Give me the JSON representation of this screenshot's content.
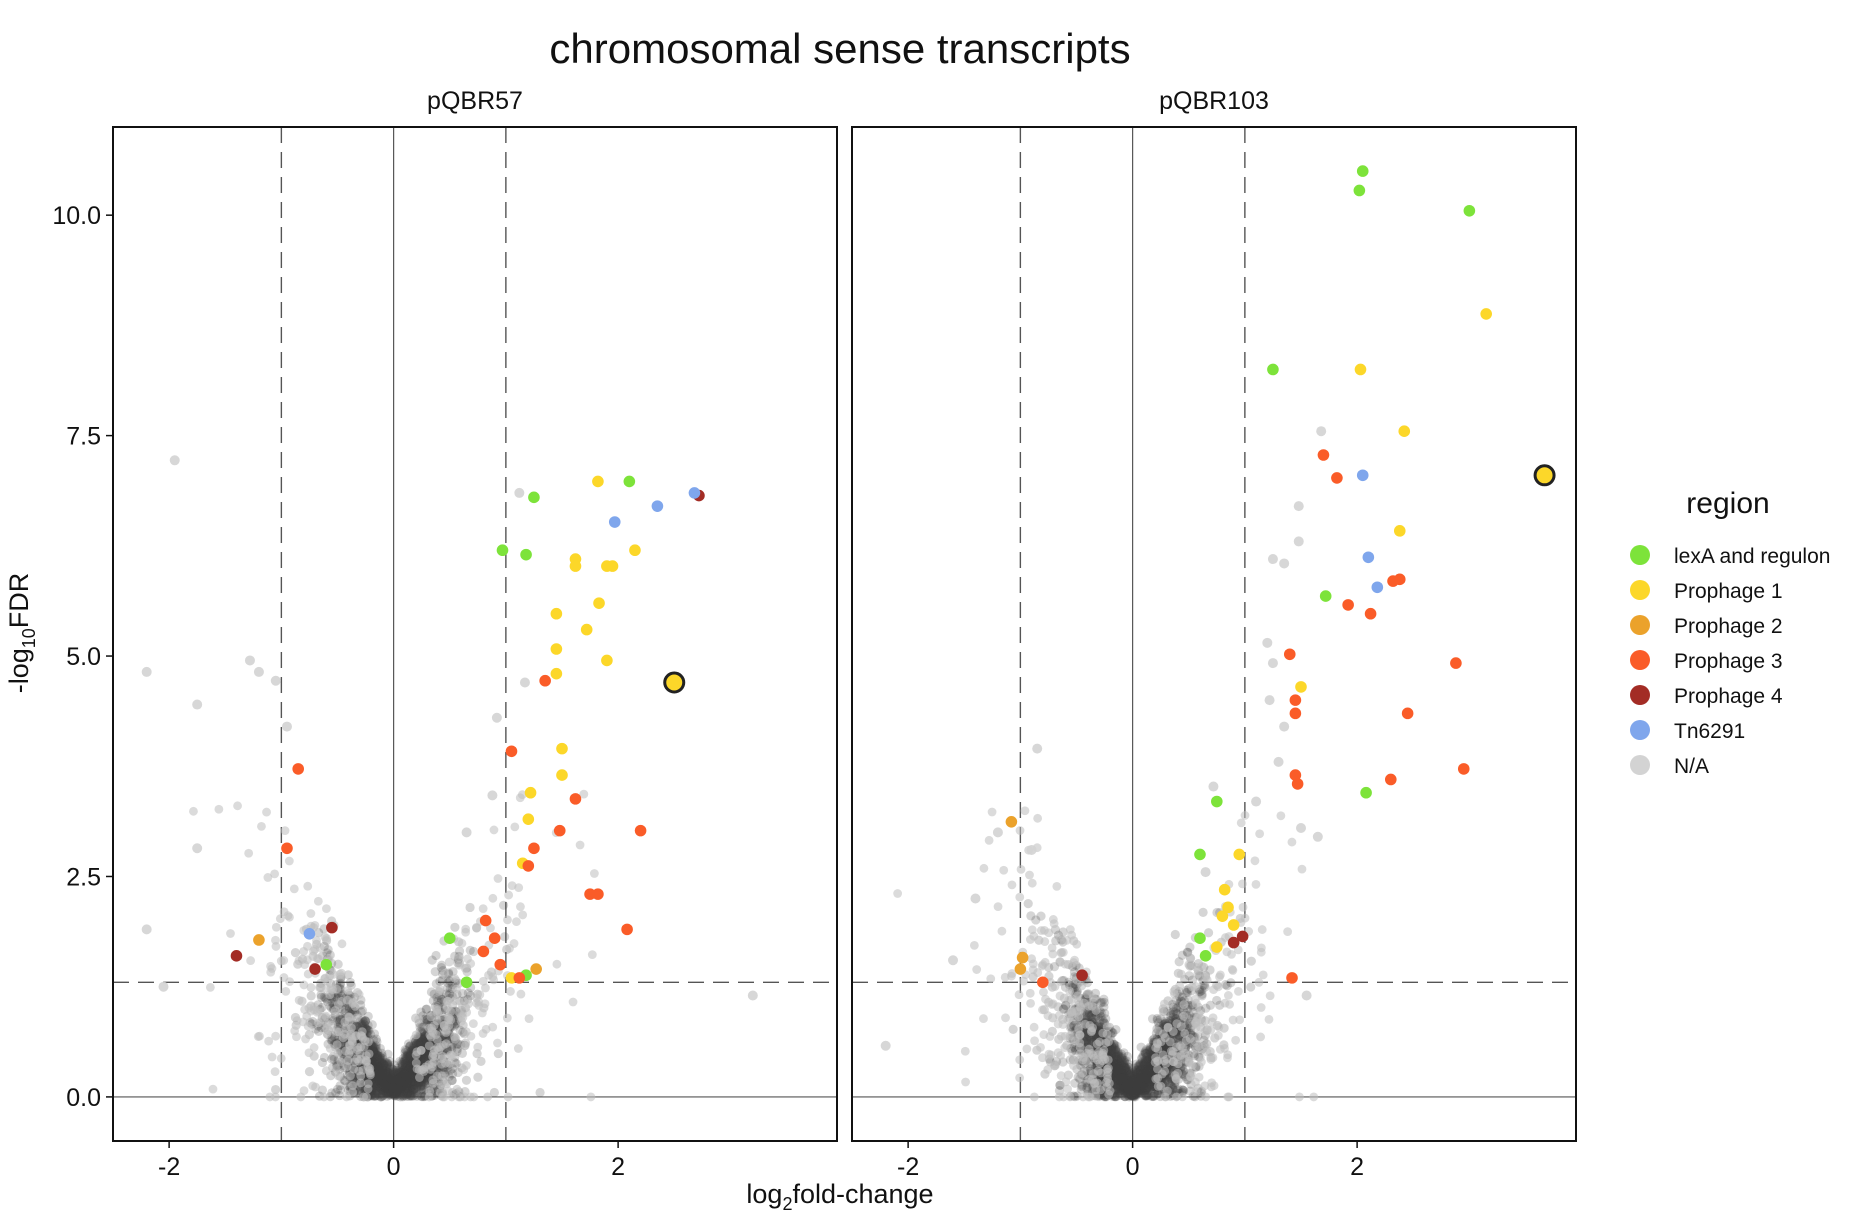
{
  "title": "chromosomal sense transcripts",
  "xlabel": {
    "prefix": "log",
    "sub": "2",
    "suffix": "fold-change"
  },
  "ylabel": {
    "prefix": "-log",
    "sub": "10",
    "suffix": "FDR"
  },
  "legend": {
    "title": "region",
    "position": "right",
    "items": [
      {
        "label": "lexA and regulon",
        "color": "#7de33a"
      },
      {
        "label": "Prophage 1",
        "color": "#fcd729"
      },
      {
        "label": "Prophage 2",
        "color": "#eba22b"
      },
      {
        "label": "Prophage 3",
        "color": "#fa5c28"
      },
      {
        "label": "Prophage 4",
        "color": "#a32c25"
      },
      {
        "label": "Tn6291",
        "color": "#7fa6ec"
      },
      {
        "label": "N/A",
        "color": "#d3d3d3"
      }
    ]
  },
  "background_color": "#3f3f3f",
  "chart_data": [
    {
      "type": "scatter",
      "panel": "pQBR57",
      "xlim": [
        -2.5,
        3.95
      ],
      "ylim": [
        -0.5,
        11.0
      ],
      "x_ticks": [
        -2,
        0,
        2
      ],
      "x_tick_labels": [
        "-2",
        "0",
        "2"
      ],
      "y_ticks": [
        0,
        2.5,
        5,
        7.5,
        10
      ],
      "y_tick_labels": [
        "0.0",
        "2.5",
        "5.0",
        "7.5",
        "10.0"
      ],
      "threshold_lines": {
        "x": [
          -1,
          1
        ],
        "y": 1.3
      },
      "zero_lines": {
        "x": 0,
        "y": 0
      },
      "highlighted": {
        "x": 2.5,
        "y": 4.7,
        "region": "Prophage 1"
      },
      "background_points": "dense cloud of several thousand non-significant transcripts forming a V shape around (0, 0)",
      "points": [
        {
          "x": 1.25,
          "y": 6.8,
          "region": "lexA and regulon"
        },
        {
          "x": 0.97,
          "y": 6.2,
          "region": "lexA and regulon"
        },
        {
          "x": 1.18,
          "y": 6.15,
          "region": "lexA and regulon"
        },
        {
          "x": 2.1,
          "y": 6.98,
          "region": "lexA and regulon"
        },
        {
          "x": 0.5,
          "y": 1.8,
          "region": "lexA and regulon"
        },
        {
          "x": 0.65,
          "y": 1.3,
          "region": "lexA and regulon"
        },
        {
          "x": 1.18,
          "y": 1.38,
          "region": "lexA and regulon"
        },
        {
          "x": -0.6,
          "y": 1.5,
          "region": "lexA and regulon"
        },
        {
          "x": 1.82,
          "y": 6.98,
          "region": "Prophage 1"
        },
        {
          "x": 1.62,
          "y": 6.1,
          "region": "Prophage 1"
        },
        {
          "x": 1.62,
          "y": 6.02,
          "region": "Prophage 1"
        },
        {
          "x": 1.9,
          "y": 6.02,
          "region": "Prophage 1"
        },
        {
          "x": 1.95,
          "y": 6.02,
          "region": "Prophage 1"
        },
        {
          "x": 2.15,
          "y": 6.2,
          "region": "Prophage 1"
        },
        {
          "x": 1.45,
          "y": 5.48,
          "region": "Prophage 1"
        },
        {
          "x": 1.83,
          "y": 5.6,
          "region": "Prophage 1"
        },
        {
          "x": 1.72,
          "y": 5.3,
          "region": "Prophage 1"
        },
        {
          "x": 1.45,
          "y": 5.08,
          "region": "Prophage 1"
        },
        {
          "x": 1.45,
          "y": 4.8,
          "region": "Prophage 1"
        },
        {
          "x": 1.9,
          "y": 4.95,
          "region": "Prophage 1"
        },
        {
          "x": 1.5,
          "y": 3.95,
          "region": "Prophage 1"
        },
        {
          "x": 1.5,
          "y": 3.65,
          "region": "Prophage 1"
        },
        {
          "x": 1.22,
          "y": 3.45,
          "region": "Prophage 1"
        },
        {
          "x": 1.2,
          "y": 3.15,
          "region": "Prophage 1"
        },
        {
          "x": 1.15,
          "y": 2.65,
          "region": "Prophage 1"
        },
        {
          "x": 1.05,
          "y": 1.35,
          "region": "Prophage 1"
        },
        {
          "x": 1.27,
          "y": 1.45,
          "region": "Prophage 2"
        },
        {
          "x": -1.2,
          "y": 1.78,
          "region": "Prophage 2"
        },
        {
          "x": 1.35,
          "y": 4.72,
          "region": "Prophage 3"
        },
        {
          "x": 1.05,
          "y": 3.92,
          "region": "Prophage 3"
        },
        {
          "x": 1.62,
          "y": 3.38,
          "region": "Prophage 3"
        },
        {
          "x": 1.48,
          "y": 3.02,
          "region": "Prophage 3"
        },
        {
          "x": 2.2,
          "y": 3.02,
          "region": "Prophage 3"
        },
        {
          "x": 1.25,
          "y": 2.82,
          "region": "Prophage 3"
        },
        {
          "x": 1.2,
          "y": 2.62,
          "region": "Prophage 3"
        },
        {
          "x": 1.75,
          "y": 2.3,
          "region": "Prophage 3"
        },
        {
          "x": 1.82,
          "y": 2.3,
          "region": "Prophage 3"
        },
        {
          "x": 2.08,
          "y": 1.9,
          "region": "Prophage 3"
        },
        {
          "x": 0.82,
          "y": 2.0,
          "region": "Prophage 3"
        },
        {
          "x": 0.9,
          "y": 1.8,
          "region": "Prophage 3"
        },
        {
          "x": 0.8,
          "y": 1.65,
          "region": "Prophage 3"
        },
        {
          "x": 0.95,
          "y": 1.5,
          "region": "Prophage 3"
        },
        {
          "x": 1.12,
          "y": 1.35,
          "region": "Prophage 3"
        },
        {
          "x": -0.85,
          "y": 3.72,
          "region": "Prophage 3"
        },
        {
          "x": -0.95,
          "y": 2.82,
          "region": "Prophage 3"
        },
        {
          "x": 2.72,
          "y": 6.82,
          "region": "Prophage 4"
        },
        {
          "x": -1.4,
          "y": 1.6,
          "region": "Prophage 4"
        },
        {
          "x": -0.55,
          "y": 1.92,
          "region": "Prophage 4"
        },
        {
          "x": -0.7,
          "y": 1.45,
          "region": "Prophage 4"
        },
        {
          "x": 2.68,
          "y": 6.85,
          "region": "Tn6291"
        },
        {
          "x": 2.35,
          "y": 6.7,
          "region": "Tn6291"
        },
        {
          "x": 1.97,
          "y": 6.52,
          "region": "Tn6291"
        },
        {
          "x": -0.75,
          "y": 1.85,
          "region": "Tn6291"
        },
        {
          "x": -1.95,
          "y": 7.22,
          "region": "N/A"
        },
        {
          "x": -2.2,
          "y": 4.82,
          "region": "N/A"
        },
        {
          "x": -1.75,
          "y": 4.45,
          "region": "N/A"
        },
        {
          "x": -1.28,
          "y": 4.95,
          "region": "N/A"
        },
        {
          "x": -1.2,
          "y": 4.82,
          "region": "N/A"
        },
        {
          "x": -1.05,
          "y": 4.72,
          "region": "N/A"
        },
        {
          "x": -0.95,
          "y": 4.2,
          "region": "N/A"
        },
        {
          "x": 1.12,
          "y": 6.85,
          "region": "N/A"
        },
        {
          "x": 1.17,
          "y": 4.7,
          "region": "N/A"
        },
        {
          "x": 0.92,
          "y": 4.3,
          "region": "N/A"
        },
        {
          "x": 0.65,
          "y": 3.0,
          "region": "N/A"
        },
        {
          "x": 0.88,
          "y": 3.42,
          "region": "N/A"
        },
        {
          "x": -2.05,
          "y": 1.25,
          "region": "N/A"
        },
        {
          "x": -2.2,
          "y": 1.9,
          "region": "N/A"
        },
        {
          "x": 3.2,
          "y": 1.15,
          "region": "N/A"
        },
        {
          "x": -1.75,
          "y": 2.82,
          "region": "N/A"
        }
      ]
    },
    {
      "type": "scatter",
      "panel": "pQBR103",
      "xlim": [
        -2.5,
        3.95
      ],
      "ylim": [
        -0.5,
        11.0
      ],
      "x_ticks": [
        -2,
        0,
        2
      ],
      "x_tick_labels": [
        "-2",
        "0",
        "2"
      ],
      "threshold_lines": {
        "x": [
          -1,
          1
        ],
        "y": 1.3
      },
      "zero_lines": {
        "x": 0,
        "y": 0
      },
      "highlighted": {
        "x": 3.67,
        "y": 7.05,
        "region": "Prophage 1"
      },
      "background_points": "dense cloud of several thousand non-significant transcripts forming a V shape around (0, 0)",
      "points": [
        {
          "x": 2.05,
          "y": 10.5,
          "region": "lexA and regulon"
        },
        {
          "x": 2.02,
          "y": 10.28,
          "region": "lexA and regulon"
        },
        {
          "x": 3.0,
          "y": 10.05,
          "region": "lexA and regulon"
        },
        {
          "x": 1.25,
          "y": 8.25,
          "region": "lexA and regulon"
        },
        {
          "x": 1.72,
          "y": 5.68,
          "region": "lexA and regulon"
        },
        {
          "x": 2.08,
          "y": 3.45,
          "region": "lexA and regulon"
        },
        {
          "x": 0.75,
          "y": 3.35,
          "region": "lexA and regulon"
        },
        {
          "x": 0.6,
          "y": 2.75,
          "region": "lexA and regulon"
        },
        {
          "x": 0.65,
          "y": 1.6,
          "region": "lexA and regulon"
        },
        {
          "x": 0.6,
          "y": 1.8,
          "region": "lexA and regulon"
        },
        {
          "x": 2.03,
          "y": 8.25,
          "region": "Prophage 1"
        },
        {
          "x": 3.15,
          "y": 8.88,
          "region": "Prophage 1"
        },
        {
          "x": 2.42,
          "y": 7.55,
          "region": "Prophage 1"
        },
        {
          "x": 2.38,
          "y": 6.42,
          "region": "Prophage 1"
        },
        {
          "x": 1.5,
          "y": 4.65,
          "region": "Prophage 1"
        },
        {
          "x": 0.95,
          "y": 2.75,
          "region": "Prophage 1"
        },
        {
          "x": 0.82,
          "y": 2.35,
          "region": "Prophage 1"
        },
        {
          "x": 0.85,
          "y": 2.15,
          "region": "Prophage 1"
        },
        {
          "x": 0.8,
          "y": 2.05,
          "region": "Prophage 1"
        },
        {
          "x": 0.9,
          "y": 1.95,
          "region": "Prophage 1"
        },
        {
          "x": 0.75,
          "y": 1.7,
          "region": "Prophage 1"
        },
        {
          "x": -1.08,
          "y": 3.12,
          "region": "Prophage 2"
        },
        {
          "x": -0.98,
          "y": 1.58,
          "region": "Prophage 2"
        },
        {
          "x": -1.0,
          "y": 1.45,
          "region": "Prophage 2"
        },
        {
          "x": 1.7,
          "y": 7.28,
          "region": "Prophage 3"
        },
        {
          "x": 1.82,
          "y": 7.02,
          "region": "Prophage 3"
        },
        {
          "x": 1.92,
          "y": 5.58,
          "region": "Prophage 3"
        },
        {
          "x": 2.12,
          "y": 5.48,
          "region": "Prophage 3"
        },
        {
          "x": 2.32,
          "y": 5.85,
          "region": "Prophage 3"
        },
        {
          "x": 2.38,
          "y": 5.87,
          "region": "Prophage 3"
        },
        {
          "x": 1.4,
          "y": 5.02,
          "region": "Prophage 3"
        },
        {
          "x": 2.88,
          "y": 4.92,
          "region": "Prophage 3"
        },
        {
          "x": 1.45,
          "y": 4.5,
          "region": "Prophage 3"
        },
        {
          "x": 1.45,
          "y": 4.35,
          "region": "Prophage 3"
        },
        {
          "x": 2.45,
          "y": 4.35,
          "region": "Prophage 3"
        },
        {
          "x": 1.45,
          "y": 3.65,
          "region": "Prophage 3"
        },
        {
          "x": 1.47,
          "y": 3.55,
          "region": "Prophage 3"
        },
        {
          "x": 2.3,
          "y": 3.6,
          "region": "Prophage 3"
        },
        {
          "x": 2.95,
          "y": 3.72,
          "region": "Prophage 3"
        },
        {
          "x": 1.42,
          "y": 1.35,
          "region": "Prophage 3"
        },
        {
          "x": -0.8,
          "y": 1.3,
          "region": "Prophage 3"
        },
        {
          "x": 0.98,
          "y": 1.82,
          "region": "Prophage 4"
        },
        {
          "x": -0.45,
          "y": 1.38,
          "region": "Prophage 4"
        },
        {
          "x": 0.9,
          "y": 1.75,
          "region": "Prophage 4"
        },
        {
          "x": 2.05,
          "y": 7.05,
          "region": "Tn6291"
        },
        {
          "x": 2.1,
          "y": 6.12,
          "region": "Tn6291"
        },
        {
          "x": 2.18,
          "y": 5.78,
          "region": "Tn6291"
        },
        {
          "x": 1.68,
          "y": 7.55,
          "region": "N/A"
        },
        {
          "x": 1.48,
          "y": 6.7,
          "region": "N/A"
        },
        {
          "x": 1.48,
          "y": 6.3,
          "region": "N/A"
        },
        {
          "x": 1.25,
          "y": 6.1,
          "region": "N/A"
        },
        {
          "x": 1.35,
          "y": 6.05,
          "region": "N/A"
        },
        {
          "x": 1.2,
          "y": 5.15,
          "region": "N/A"
        },
        {
          "x": 1.25,
          "y": 4.92,
          "region": "N/A"
        },
        {
          "x": 1.22,
          "y": 4.5,
          "region": "N/A"
        },
        {
          "x": 1.35,
          "y": 4.2,
          "region": "N/A"
        },
        {
          "x": 1.3,
          "y": 3.8,
          "region": "N/A"
        },
        {
          "x": 1.5,
          "y": 3.05,
          "region": "N/A"
        },
        {
          "x": 1.65,
          "y": 2.95,
          "region": "N/A"
        },
        {
          "x": 1.1,
          "y": 3.35,
          "region": "N/A"
        },
        {
          "x": 0.72,
          "y": 3.52,
          "region": "N/A"
        },
        {
          "x": 0.65,
          "y": 2.55,
          "region": "N/A"
        },
        {
          "x": -0.85,
          "y": 3.95,
          "region": "N/A"
        },
        {
          "x": -0.9,
          "y": 2.8,
          "region": "N/A"
        },
        {
          "x": -1.2,
          "y": 3.0,
          "region": "N/A"
        },
        {
          "x": -2.2,
          "y": 0.58,
          "region": "N/A"
        },
        {
          "x": -1.6,
          "y": 1.55,
          "region": "N/A"
        },
        {
          "x": -1.4,
          "y": 2.25,
          "region": "N/A"
        },
        {
          "x": 1.55,
          "y": 1.15,
          "region": "N/A"
        }
      ]
    }
  ]
}
